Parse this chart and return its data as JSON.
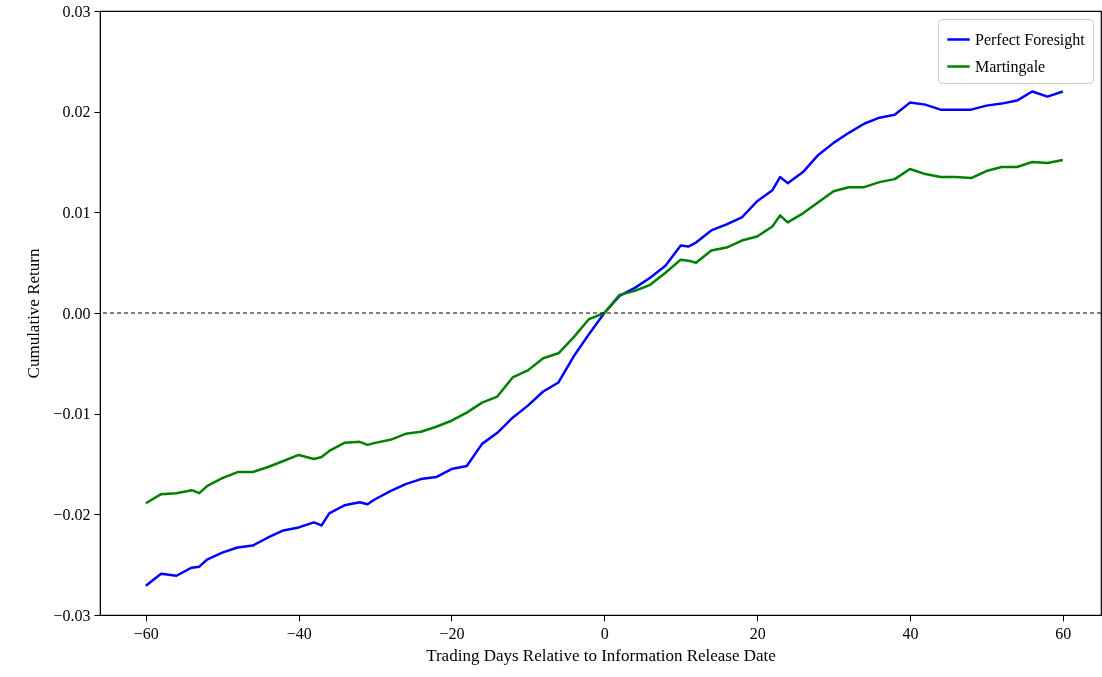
{
  "chart_data": {
    "type": "line",
    "xlabel": "Trading Days Relative to Information Release Date",
    "ylabel": "Cumulative Return",
    "x": [
      -60,
      -58,
      -56,
      -54,
      -53,
      -52,
      -50,
      -48,
      -46,
      -44,
      -42,
      -40,
      -38,
      -37,
      -36,
      -34,
      -32,
      -31,
      -30,
      -28,
      -26,
      -24,
      -22,
      -20,
      -18,
      -16,
      -14,
      -12,
      -10,
      -8,
      -6,
      -4,
      -2,
      0,
      2,
      4,
      6,
      8,
      10,
      11,
      12,
      14,
      16,
      18,
      20,
      22,
      23,
      24,
      26,
      28,
      30,
      32,
      34,
      36,
      38,
      40,
      42,
      44,
      46,
      48,
      50,
      52,
      54,
      56,
      58,
      60
    ],
    "series": [
      {
        "name": "Perfect Foresight",
        "color": "#0000ff",
        "values": [
          -0.0271,
          -0.0259,
          -0.0261,
          -0.0253,
          -0.0252,
          -0.0245,
          -0.0238,
          -0.0233,
          -0.0231,
          -0.0223,
          -0.0216,
          -0.0213,
          -0.0208,
          -0.0211,
          -0.0199,
          -0.0191,
          -0.0188,
          -0.019,
          -0.0185,
          -0.0177,
          -0.017,
          -0.0165,
          -0.0163,
          -0.0155,
          -0.0152,
          -0.013,
          -0.0119,
          -0.0104,
          -0.0092,
          -0.0078,
          -0.0069,
          -0.0043,
          -0.0021,
          0,
          0.0017,
          0.0025,
          0.0035,
          0.0047,
          0.0067,
          0.0066,
          0.007,
          0.0082,
          0.0088,
          0.0095,
          0.0111,
          0.0122,
          0.0135,
          0.0129,
          0.014,
          0.0157,
          0.0169,
          0.0179,
          0.0188,
          0.0194,
          0.0197,
          0.0209,
          0.0207,
          0.0202,
          0.0202,
          0.0202,
          0.0206,
          0.0208,
          0.0211,
          0.022,
          0.0215,
          0.022
        ]
      },
      {
        "name": "Martingale",
        "color": "#008000",
        "values": [
          -0.0189,
          -0.018,
          -0.0179,
          -0.0176,
          -0.0179,
          -0.0172,
          -0.0164,
          -0.0158,
          -0.0158,
          -0.0153,
          -0.0147,
          -0.0141,
          -0.0145,
          -0.0143,
          -0.0137,
          -0.0129,
          -0.0128,
          -0.0131,
          -0.0129,
          -0.0126,
          -0.012,
          -0.0118,
          -0.0113,
          -0.0107,
          -0.0099,
          -0.0089,
          -0.0083,
          -0.0064,
          -0.0057,
          -0.0045,
          -0.004,
          -0.0024,
          -0.0006,
          0,
          0.0018,
          0.0022,
          0.0028,
          0.004,
          0.0053,
          0.0052,
          0.005,
          0.0062,
          0.0065,
          0.0072,
          0.0076,
          0.0086,
          0.0097,
          0.009,
          0.0099,
          0.011,
          0.0121,
          0.0125,
          0.0125,
          0.013,
          0.0133,
          0.0143,
          0.0138,
          0.0135,
          0.0135,
          0.0134,
          0.0141,
          0.0145,
          0.0145,
          0.015,
          0.0149,
          0.0152
        ]
      }
    ],
    "xlim": [
      -66,
      65
    ],
    "xticks": [
      {
        "value": -60,
        "label": "−60"
      },
      {
        "value": -40,
        "label": "−40"
      },
      {
        "value": -20,
        "label": "−20"
      },
      0,
      20,
      40,
      60
    ],
    "ylim": [
      -0.03,
      0.03
    ],
    "yticks": [
      {
        "value": -0.03,
        "label": "−0.03"
      },
      {
        "value": -0.02,
        "label": "−0.02"
      },
      {
        "value": -0.01,
        "label": "−0.01"
      },
      {
        "value": 0,
        "label": "0.00"
      },
      {
        "value": 0.01,
        "label": "0.01"
      },
      {
        "value": 0.02,
        "label": "0.02"
      },
      {
        "value": 0.03,
        "label": "0.03"
      }
    ],
    "ref_lines": [
      {
        "axis": "y",
        "value": 0,
        "color": "#000000",
        "line_style": "dashed"
      }
    ],
    "grid": false,
    "legend": "top right"
  }
}
